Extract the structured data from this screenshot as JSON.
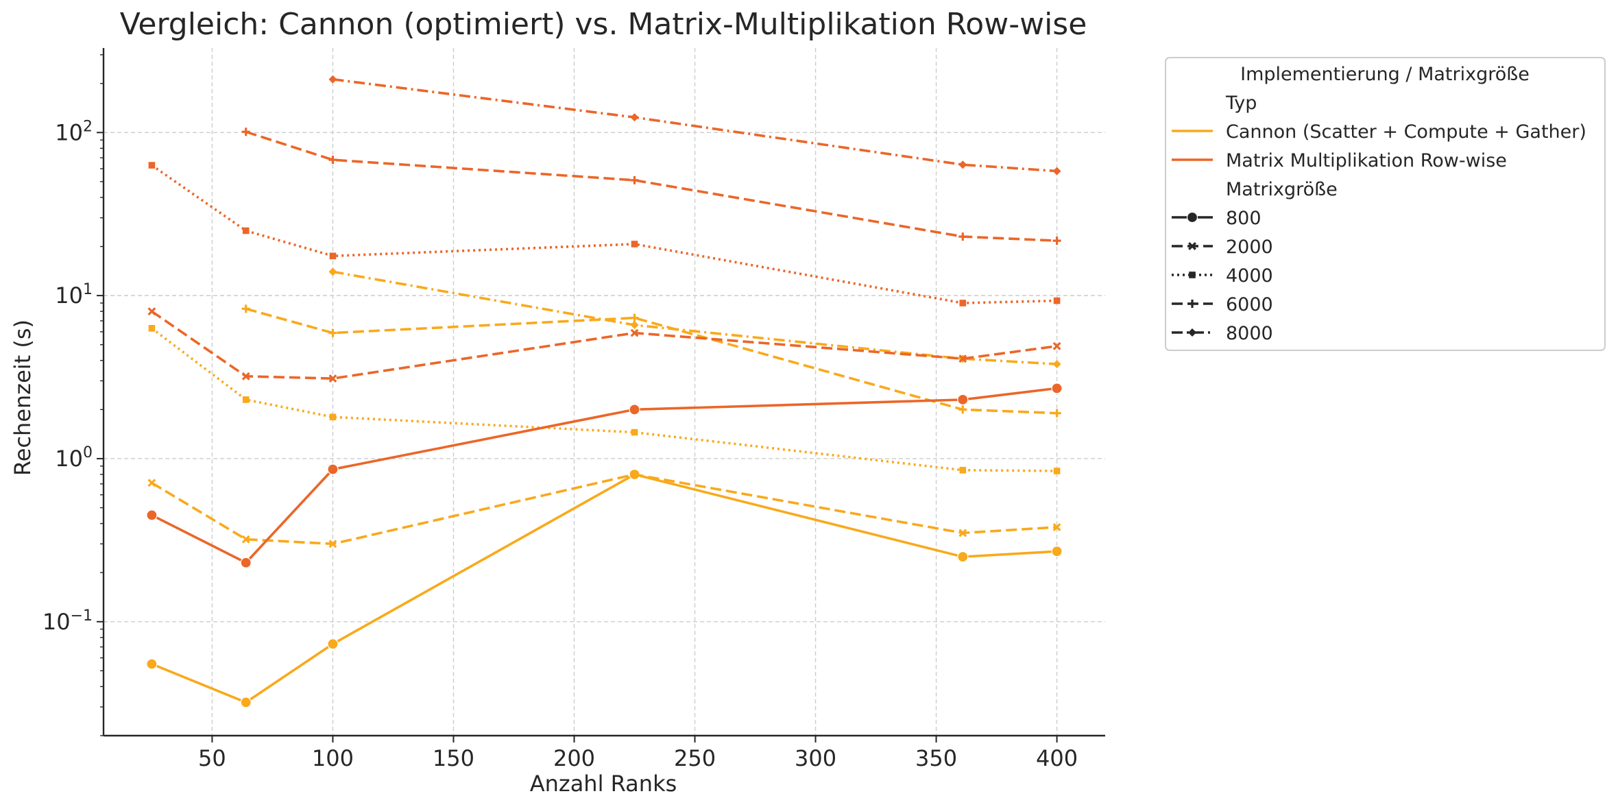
{
  "chart_data": {
    "type": "line",
    "title": "Vergleich: Cannon (optimiert) vs. Matrix-Multiplikation Row-wise",
    "xlabel": "Anzahl Ranks",
    "ylabel": "Rechenzeit (s)",
    "x_ticks": [
      50,
      100,
      150,
      200,
      250,
      300,
      350,
      400
    ],
    "xlim": [
      5,
      420
    ],
    "y_scale": "log",
    "ylim": [
      0.02,
      330
    ],
    "y_ticks": [
      {
        "value": 0.1,
        "base": "10",
        "exp": "−1"
      },
      {
        "value": 1,
        "base": "10",
        "exp": "0"
      },
      {
        "value": 10,
        "base": "10",
        "exp": "1"
      },
      {
        "value": 100,
        "base": "10",
        "exp": "2"
      }
    ],
    "grid": true,
    "legend": {
      "title": "Implementierung / Matrixgröße",
      "placement": "outside-right",
      "group_type": "Typ",
      "types": [
        {
          "name": "Cannon (Scatter + Compute + Gather)",
          "color": "#F9A91B"
        },
        {
          "name": "Matrix Multiplikation Row-wise",
          "color": "#EB6628"
        }
      ],
      "group_size": "Matrixgröße",
      "sizes": [
        {
          "name": "800",
          "dash": "solid",
          "marker": "circle"
        },
        {
          "name": "2000",
          "dash": "dashed",
          "marker": "x"
        },
        {
          "name": "4000",
          "dash": "dotted",
          "marker": "square"
        },
        {
          "name": "6000",
          "dash": "dashed",
          "marker": "plus"
        },
        {
          "name": "8000",
          "dash": "dashdot",
          "marker": "diamond"
        }
      ]
    },
    "series": [
      {
        "type": "Cannon (Scatter + Compute + Gather)",
        "size": "800",
        "x": [
          25,
          64,
          100,
          225,
          361,
          400
        ],
        "y": [
          0.055,
          0.032,
          0.073,
          0.8,
          0.25,
          0.27
        ]
      },
      {
        "type": "Cannon (Scatter + Compute + Gather)",
        "size": "2000",
        "x": [
          25,
          64,
          100,
          225,
          361,
          400
        ],
        "y": [
          0.71,
          0.32,
          0.3,
          0.8,
          0.35,
          0.38
        ]
      },
      {
        "type": "Cannon (Scatter + Compute + Gather)",
        "size": "4000",
        "x": [
          25,
          64,
          100,
          225,
          361,
          400
        ],
        "y": [
          6.3,
          2.3,
          1.8,
          1.45,
          0.85,
          0.84
        ]
      },
      {
        "type": "Cannon (Scatter + Compute + Gather)",
        "size": "6000",
        "x": [
          64,
          100,
          225,
          361,
          400
        ],
        "y": [
          8.3,
          5.9,
          7.3,
          2.0,
          1.9
        ]
      },
      {
        "type": "Cannon (Scatter + Compute + Gather)",
        "size": "8000",
        "x": [
          100,
          225,
          361,
          400
        ],
        "y": [
          14.0,
          6.6,
          4.1,
          3.8
        ]
      },
      {
        "type": "Matrix Multiplikation Row-wise",
        "size": "800",
        "x": [
          25,
          64,
          100,
          225,
          361,
          400
        ],
        "y": [
          0.45,
          0.23,
          0.86,
          2.0,
          2.3,
          2.7
        ]
      },
      {
        "type": "Matrix Multiplikation Row-wise",
        "size": "2000",
        "x": [
          25,
          64,
          100,
          225,
          361,
          400
        ],
        "y": [
          8.0,
          3.2,
          3.1,
          5.9,
          4.1,
          4.9
        ]
      },
      {
        "type": "Matrix Multiplikation Row-wise",
        "size": "4000",
        "x": [
          25,
          64,
          100,
          225,
          361,
          400
        ],
        "y": [
          63.0,
          25.0,
          17.5,
          20.7,
          9.0,
          9.3
        ]
      },
      {
        "type": "Matrix Multiplikation Row-wise",
        "size": "6000",
        "x": [
          64,
          100,
          225,
          361,
          400
        ],
        "y": [
          101.0,
          68.0,
          51.0,
          23.0,
          21.7
        ]
      },
      {
        "type": "Matrix Multiplikation Row-wise",
        "size": "8000",
        "x": [
          100,
          225,
          361,
          400
        ],
        "y": [
          212.0,
          124.0,
          63.5,
          58.0
        ]
      }
    ]
  }
}
